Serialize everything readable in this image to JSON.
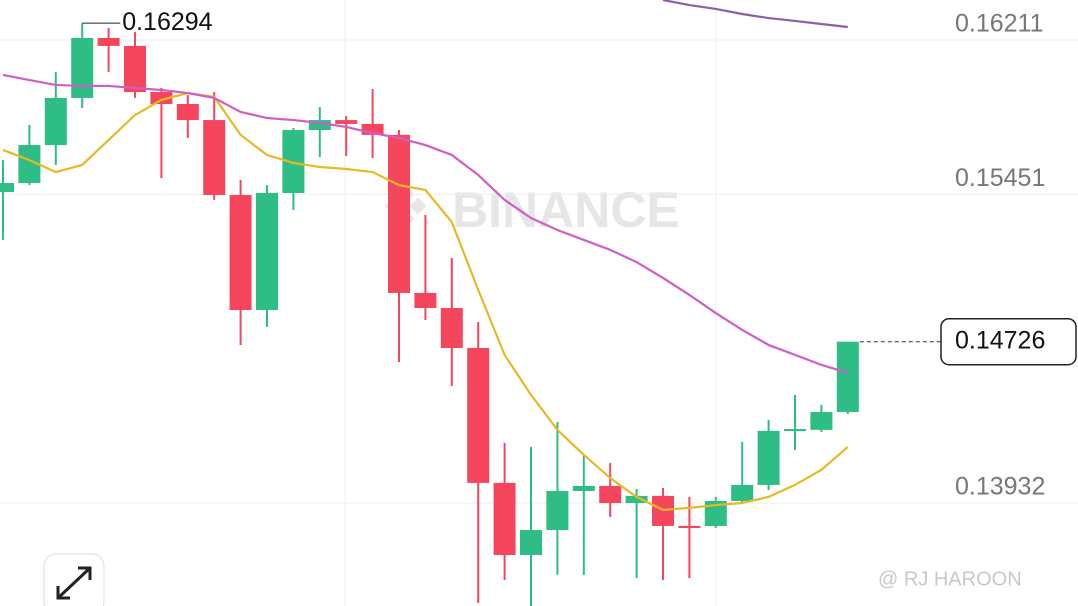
{
  "chart_data": {
    "type": "candlestick",
    "open": [
      0.15463,
      0.15507,
      0.15694,
      0.15926,
      0.16221,
      0.16182,
      0.15955,
      0.15896,
      0.15817,
      0.15448,
      0.14882,
      0.15458,
      0.15768,
      0.15817,
      0.15798,
      0.15744,
      0.14966,
      0.14892,
      0.14695,
      0.14031,
      0.13676,
      0.13799,
      0.13991,
      0.14016,
      0.13932,
      0.13967,
      0.13819,
      0.13819,
      0.13942,
      0.14021,
      0.14287,
      0.14292,
      0.1438
    ],
    "high": [
      0.1562,
      0.15793,
      0.16054,
      0.16294,
      0.1627,
      0.1625,
      0.15975,
      0.1594,
      0.15955,
      0.15522,
      0.15497,
      0.15778,
      0.15881,
      0.15837,
      0.1597,
      0.15768,
      0.1535,
      0.15138,
      0.14823,
      0.14228,
      0.14208,
      0.14331,
      0.14164,
      0.14129,
      0.14001,
      0.14006,
      0.13962,
      0.13962,
      0.14233,
      0.14341,
      0.14464,
      0.14415,
      0.14726
    ],
    "low": [
      0.15227,
      0.15497,
      0.15596,
      0.15876,
      0.16054,
      0.15926,
      0.15532,
      0.15729,
      0.15424,
      0.1471,
      0.14799,
      0.15374,
      0.15635,
      0.1564,
      0.1563,
      0.14626,
      0.14833,
      0.14508,
      0.1344,
      0.13553,
      0.13425,
      0.13578,
      0.13578,
      0.13863,
      0.13563,
      0.13553,
      0.13563,
      0.13809,
      0.13932,
      0.13996,
      0.14193,
      0.14282,
      0.1437
    ],
    "close": [
      0.15507,
      0.15694,
      0.15926,
      0.16221,
      0.16182,
      0.15955,
      0.15896,
      0.15817,
      0.15448,
      0.14882,
      0.15458,
      0.15768,
      0.15817,
      0.15798,
      0.15744,
      0.14966,
      0.14892,
      0.14695,
      0.14031,
      0.13676,
      0.13799,
      0.13991,
      0.14016,
      0.13932,
      0.13967,
      0.13819,
      0.13809,
      0.13942,
      0.14021,
      0.14287,
      0.14296,
      0.1438,
      0.14726
    ],
    "up_color": "#2ebd85",
    "down_color": "#f6465d",
    "series": [
      {
        "color": "#e8b923",
        "values": [
          0.1567,
          0.1562,
          0.15561,
          0.15596,
          0.15719,
          0.15842,
          0.15916,
          0.1595,
          0.15931,
          0.15744,
          0.15645,
          0.15606,
          0.15586,
          0.15576,
          0.15561,
          0.15497,
          0.15473,
          0.15315,
          0.14981,
          0.14661,
          0.14464,
          0.14292,
          0.14169,
          0.14055,
          0.13962,
          0.13898,
          0.13908,
          0.13922,
          0.13932,
          0.13962,
          0.14021,
          0.14095,
          0.14208
        ]
      },
      {
        "color": "#d15dc8",
        "values": [
          0.16039,
          0.16014,
          0.1599,
          0.15985,
          0.15985,
          0.15975,
          0.15965,
          0.1595,
          0.15926,
          0.15857,
          0.15827,
          0.15817,
          0.15803,
          0.15783,
          0.15753,
          0.15729,
          0.15694,
          0.15645,
          0.15547,
          0.15424,
          0.15335,
          0.15276,
          0.15227,
          0.15178,
          0.15118,
          0.1504,
          0.14956,
          0.14867,
          0.14784,
          0.1471,
          0.14661,
          0.14612,
          0.14572
        ]
      },
      {
        "color": "#8e5ea8",
        "values": [
          null,
          null,
          null,
          null,
          null,
          null,
          null,
          null,
          null,
          null,
          null,
          null,
          null,
          null,
          null,
          null,
          null,
          null,
          null,
          null,
          null,
          null,
          null,
          null,
          null,
          0.16408,
          0.16383,
          0.16364,
          0.16339,
          0.16319,
          0.16305,
          0.1629,
          0.16275
        ]
      }
    ],
    "ylim": [
      0.13425,
      0.16408
    ],
    "yticks": [
      0.16211,
      0.15451,
      0.13932
    ],
    "grid": true,
    "watermark": "BINANCE",
    "credit": "@ RJ HAROON"
  }
}
